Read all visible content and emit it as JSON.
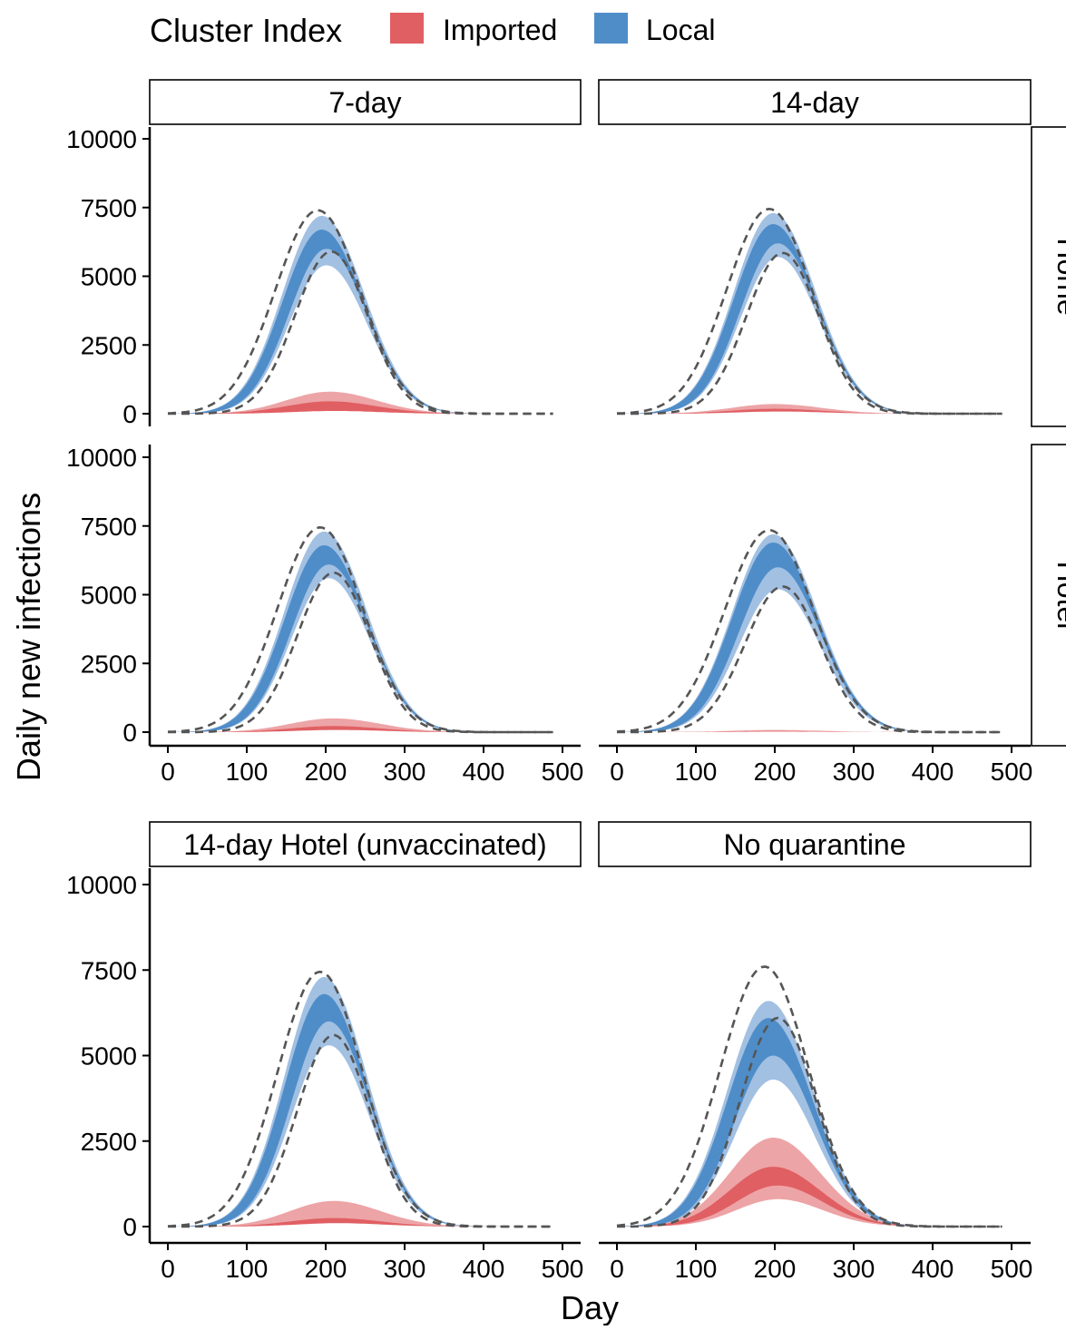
{
  "legend": {
    "title": "Cluster Index",
    "entries": [
      {
        "label": "Imported",
        "color": "#e05f63"
      },
      {
        "label": "Local",
        "color": "#4f8dc9"
      }
    ]
  },
  "chart_data": {
    "type": "area",
    "xlabel": "Day",
    "ylabel": "Daily new infections",
    "xlim": [
      0,
      500
    ],
    "ylim": [
      0,
      10000
    ],
    "xticks": [
      0,
      100,
      200,
      300,
      400,
      500
    ],
    "yticks": [
      0,
      2500,
      5000,
      7500,
      10000
    ],
    "columns": [
      "7-day",
      "14-day"
    ],
    "rows": [
      "Home",
      "Hotel"
    ],
    "extra_panels": [
      "14-day Hotel (unvaccinated)",
      "No quarantine"
    ],
    "colors": {
      "local_outer": "#9dbde0",
      "local_inner": "#4f8dc9",
      "imported_outer": "#eda4a6",
      "imported_inner": "#e05f63",
      "bounds_line": "#555555"
    },
    "grid": false,
    "legend_position": "top",
    "panels": [
      {
        "title": "7-day",
        "row": "Home",
        "local": {
          "peak_day": 195,
          "width": 50,
          "outer": [
            5400,
            7200
          ],
          "inner": [
            6000,
            6700
          ]
        },
        "imported": {
          "peak_day": 205,
          "width": 55,
          "outer": [
            150,
            800
          ],
          "inner": [
            100,
            450
          ]
        },
        "bounds": {
          "upper": 7400,
          "lower": 5900
        }
      },
      {
        "title": "14-day",
        "row": "Home",
        "local": {
          "peak_day": 198,
          "width": 50,
          "outer": [
            5700,
            7300
          ],
          "inner": [
            6200,
            6900
          ]
        },
        "imported": {
          "peak_day": 200,
          "width": 55,
          "outer": [
            100,
            350
          ],
          "inner": [
            80,
            180
          ]
        },
        "bounds": {
          "upper": 7450,
          "lower": 5850
        }
      },
      {
        "title": "7-day",
        "row": "Hotel",
        "local": {
          "peak_day": 198,
          "width": 50,
          "outer": [
            5600,
            7300
          ],
          "inner": [
            6100,
            6800
          ]
        },
        "imported": {
          "peak_day": 210,
          "width": 55,
          "outer": [
            100,
            500
          ],
          "inner": [
            80,
            220
          ]
        },
        "bounds": {
          "upper": 7450,
          "lower": 5800
        }
      },
      {
        "title": "14-day",
        "row": "Hotel",
        "local": {
          "peak_day": 198,
          "width": 52,
          "outer": [
            5200,
            7200
          ],
          "inner": [
            6000,
            6900
          ]
        },
        "imported": {
          "peak_day": 200,
          "width": 55,
          "outer": [
            30,
            80
          ],
          "inner": [
            20,
            40
          ]
        },
        "bounds": {
          "upper": 7350,
          "lower": 5300
        }
      },
      {
        "title": "14-day Hotel (unvaccinated)",
        "row": "",
        "local": {
          "peak_day": 198,
          "width": 50,
          "outer": [
            5300,
            7300
          ],
          "inner": [
            6000,
            6800
          ]
        },
        "imported": {
          "peak_day": 210,
          "width": 55,
          "outer": [
            150,
            750
          ],
          "inner": [
            100,
            250
          ]
        },
        "bounds": {
          "upper": 7450,
          "lower": 5600
        }
      },
      {
        "title": "No quarantine",
        "row": "",
        "local": {
          "peak_day": 192,
          "width": 52,
          "outer": [
            4300,
            6600
          ],
          "inner": [
            5000,
            6100
          ]
        },
        "imported": {
          "peak_day": 198,
          "width": 55,
          "outer": [
            800,
            2600
          ],
          "inner": [
            1200,
            1750
          ]
        },
        "bounds": {
          "upper": 7600,
          "lower": 6100
        }
      }
    ]
  }
}
